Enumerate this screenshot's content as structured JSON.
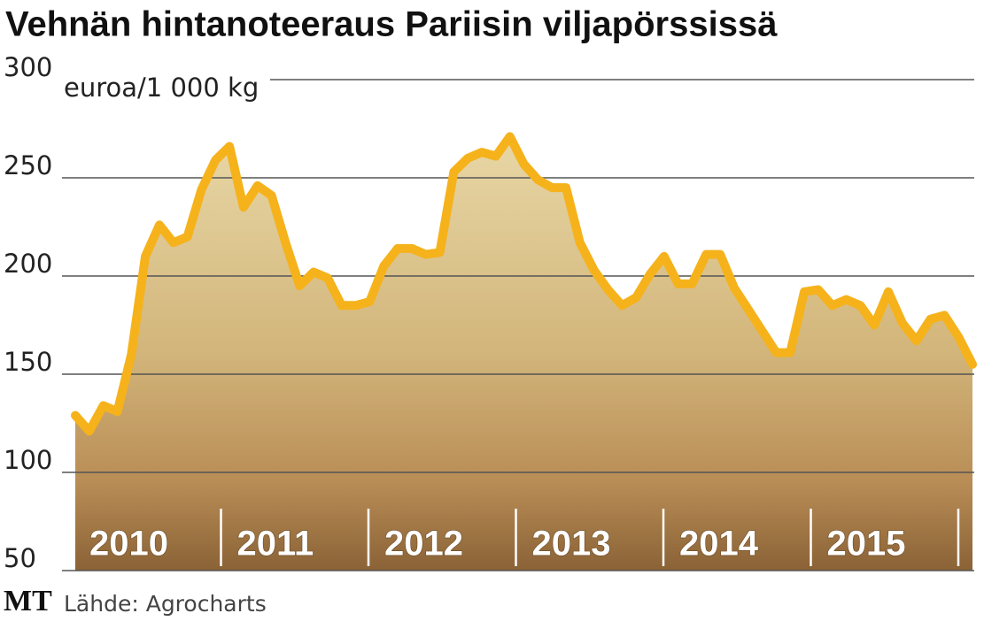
{
  "chart_data": {
    "type": "line",
    "title": "Vehnän hintanoteeraus Pariisin viljapörssissä",
    "y_unit": "euroa/1 000 kg",
    "source": "Lähde: Agrocharts",
    "logo": "MT",
    "year_labels": [
      "2010",
      "2011",
      "2012",
      "2013",
      "2014",
      "2015"
    ],
    "color": "#f5b21b",
    "grid": true,
    "ylim": [
      50,
      300
    ],
    "yticks": [
      50,
      100,
      150,
      200,
      250,
      300
    ],
    "values": [
      129,
      121,
      134,
      131,
      160,
      210,
      226,
      217,
      220,
      244,
      259,
      266,
      235,
      246,
      241,
      217,
      195,
      202,
      199,
      185,
      185,
      187,
      205,
      214,
      214,
      211,
      212,
      253,
      260,
      263,
      261,
      271,
      257,
      249,
      245,
      245,
      217,
      203,
      193,
      185,
      189,
      201,
      210,
      196,
      196,
      211,
      211,
      194,
      183,
      172,
      161,
      161,
      192,
      193,
      185,
      188,
      185,
      175,
      192,
      176,
      167,
      178,
      180,
      169,
      155
    ]
  }
}
